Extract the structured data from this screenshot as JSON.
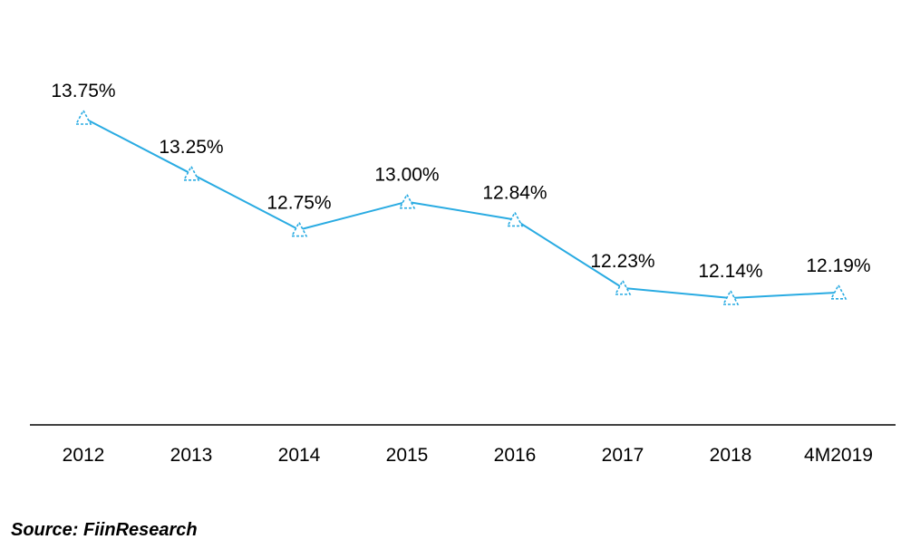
{
  "chart_data": {
    "type": "line",
    "categories": [
      "2012",
      "2013",
      "2014",
      "2015",
      "2016",
      "2017",
      "2018",
      "4M2019"
    ],
    "series": [
      {
        "values": [
          13.75,
          13.25,
          12.75,
          13.0,
          12.84,
          12.23,
          12.14,
          12.19
        ],
        "data_labels": [
          "13.75%",
          "13.25%",
          "12.75%",
          "13.00%",
          "12.84%",
          "12.23%",
          "12.14%",
          "12.19%"
        ],
        "color": "#29ABE2",
        "marker": "triangle-open-dashed"
      }
    ],
    "title": "",
    "xlabel": "",
    "ylabel": "",
    "y_axis_visible": false,
    "grid": false,
    "legend": "none",
    "axis_color": "#000000"
  },
  "source": "Source: FiinResearch"
}
